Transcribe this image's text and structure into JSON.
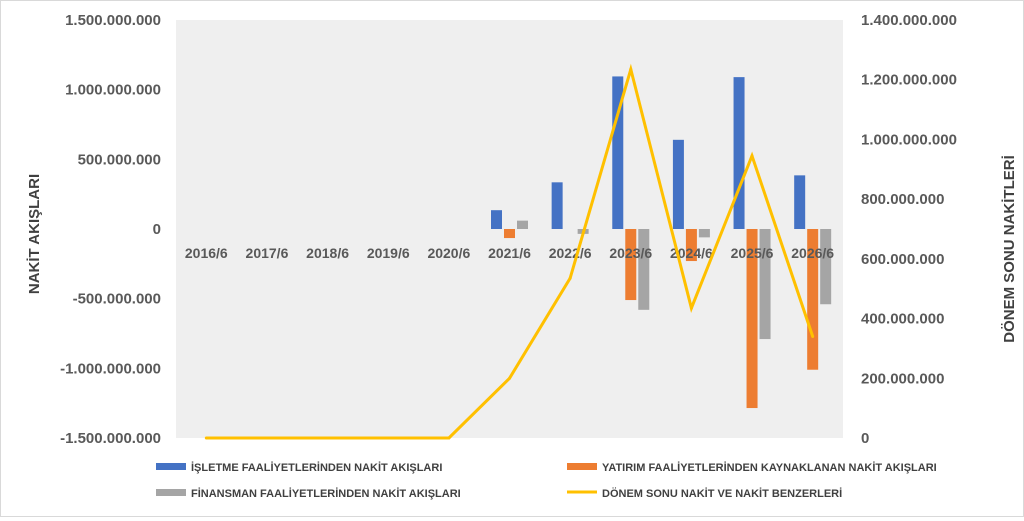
{
  "chart_data": {
    "type": "bar",
    "categories": [
      "2016/6",
      "2017/6",
      "2018/6",
      "2019/6",
      "2020/6",
      "2021/6",
      "2022/6",
      "2023/6",
      "2024/6",
      "2025/6",
      "2026/6"
    ],
    "series": [
      {
        "name": "İŞLETME FAALİYETLERİNDEN NAKİT AKIŞLARI",
        "axis": "left",
        "color": "#4472c4",
        "values": [
          0,
          0,
          0,
          0,
          0,
          135000000,
          335000000,
          1095000000,
          640000000,
          1090000000,
          385000000
        ]
      },
      {
        "name": "YATIRIM FAALİYETLERİNDEN KAYNAKLANAN NAKİT AKIŞLARI",
        "axis": "left",
        "color": "#ed7d31",
        "values": [
          0,
          0,
          0,
          0,
          0,
          -65000000,
          0,
          -510000000,
          -230000000,
          -1285000000,
          -1010000000
        ]
      },
      {
        "name": "FİNANSMAN FAALİYETLERİNDEN NAKİT AKIŞLARI",
        "axis": "left",
        "color": "#a5a5a5",
        "values": [
          0,
          0,
          0,
          0,
          0,
          60000000,
          -35000000,
          -580000000,
          -60000000,
          -790000000,
          -540000000
        ]
      },
      {
        "name": "DÖNEM SONU NAKİT VE NAKİT BENZERLERİ",
        "axis": "right",
        "type": "line",
        "color": "#ffc000",
        "values": [
          0,
          0,
          0,
          0,
          0,
          200000000,
          535000000,
          1235000000,
          435000000,
          945000000,
          340000000
        ]
      }
    ],
    "ylabel": "NAKİT AKIŞLARI",
    "y2label": "DÖNEM SONU NAKİTLERİ",
    "ylim": [
      -1500000000,
      1500000000
    ],
    "y2lim": [
      0,
      1400000000
    ],
    "yticks": [
      {
        "value": 1500000000,
        "label": "1.500.000.000"
      },
      {
        "value": 1000000000,
        "label": "1.000.000.000"
      },
      {
        "value": 500000000,
        "label": "500.000.000"
      },
      {
        "value": 0,
        "label": "0"
      },
      {
        "value": -500000000,
        "label": "-500.000.000"
      },
      {
        "value": -1000000000,
        "label": "-1.000.000.000"
      },
      {
        "value": -1500000000,
        "label": "-1.500.000.000"
      }
    ],
    "y2ticks": [
      {
        "value": 1400000000,
        "label": "1.400.000.000"
      },
      {
        "value": 1200000000,
        "label": "1.200.000.000"
      },
      {
        "value": 1000000000,
        "label": "1.000.000.000"
      },
      {
        "value": 800000000,
        "label": "800.000.000"
      },
      {
        "value": 600000000,
        "label": "600.000.000"
      },
      {
        "value": 400000000,
        "label": "400.000.000"
      },
      {
        "value": 200000000,
        "label": "200.000.000"
      },
      {
        "value": 0,
        "label": "0"
      }
    ],
    "plot_background": "#efefef",
    "legend_position": "bottom"
  }
}
